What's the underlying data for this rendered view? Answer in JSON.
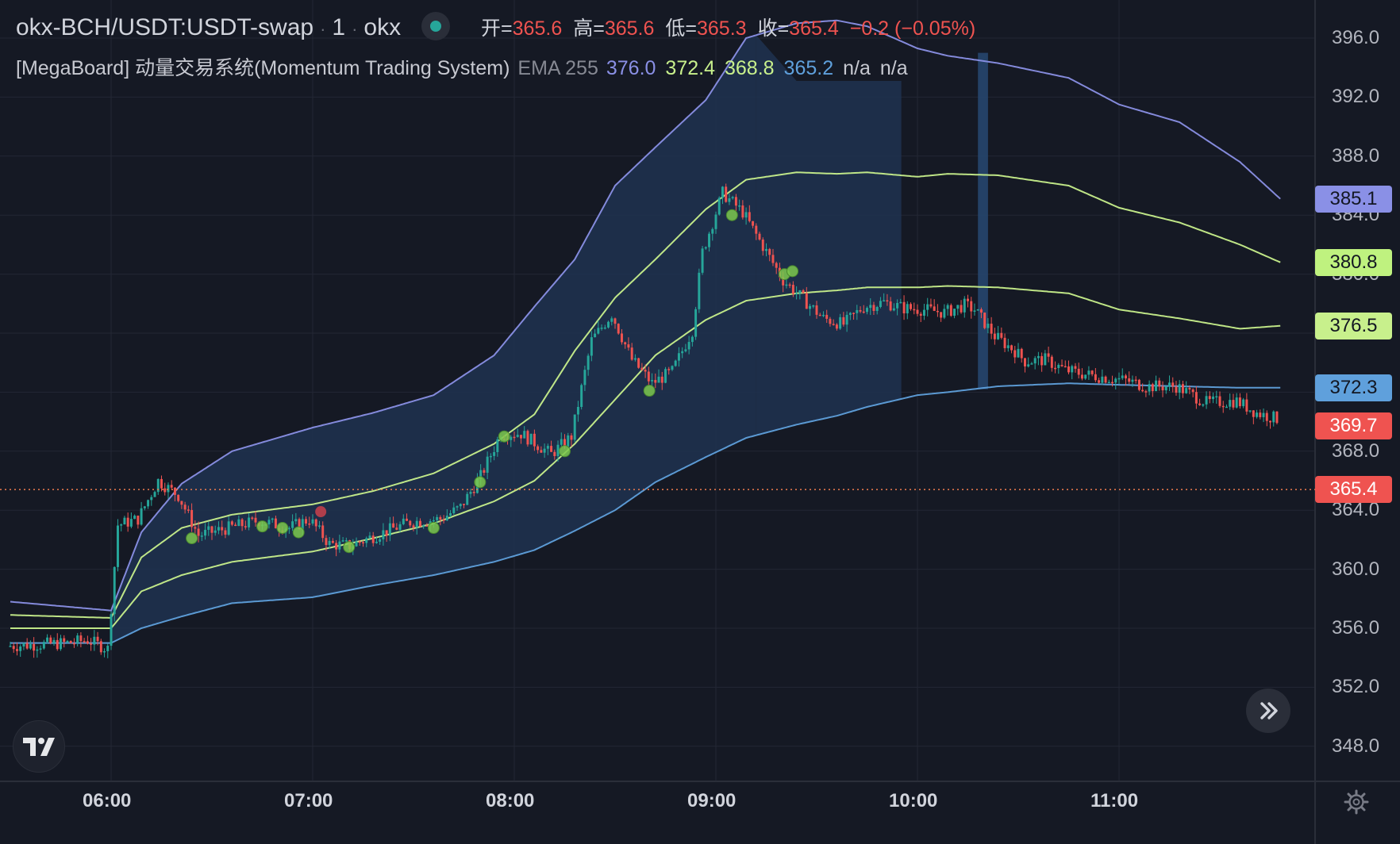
{
  "header": {
    "symbol": "okx-BCH/USDT:USDT-swap",
    "interval": "1",
    "exchange": "okx",
    "ohlc": [
      {
        "label": "开=",
        "value": "365.6"
      },
      {
        "label": "高=",
        "value": "365.6"
      },
      {
        "label": "低=",
        "value": "365.3"
      },
      {
        "label": "收=",
        "value": "365.4"
      }
    ],
    "change": "−0.2 (−0.05%)"
  },
  "indicator": {
    "title": "[MegaBoard] 动量交易系统(Momentum Trading System)",
    "ema_label": "EMA 255",
    "values": [
      {
        "text": "376.0",
        "color": "#8a90e6"
      },
      {
        "text": "372.4",
        "color": "#c8f08c"
      },
      {
        "text": "368.8",
        "color": "#c8f08c"
      },
      {
        "text": "365.2",
        "color": "#5fa0dc"
      },
      {
        "text": "n/a",
        "color": "#c7c9d1"
      },
      {
        "text": "n/a",
        "color": "#c7c9d1"
      }
    ]
  },
  "price_tags": [
    {
      "text": "385.1",
      "value": 385.1,
      "color": "#8a90e6"
    },
    {
      "text": "380.8",
      "value": 380.8,
      "color": "#bff27f"
    },
    {
      "text": "376.5",
      "value": 376.5,
      "color": "#c8f08c"
    },
    {
      "text": "372.3",
      "value": 372.3,
      "color": "#5fa0dc"
    },
    {
      "text": "369.7",
      "value": 369.7,
      "color": "#ef5350"
    },
    {
      "text": "365.4",
      "value": 365.4,
      "color": "#ef5350"
    }
  ],
  "colors": {
    "background": "#151924",
    "grid": "#232734",
    "up": "#26a69a",
    "down": "#ef5350",
    "upper_band": "#8a90e6",
    "mid_band": "#c8f08c",
    "lower_band": "#5fa0dc",
    "fill": "#1f3350",
    "current_price_line": "#ef7c4d"
  },
  "icons": {
    "logo": "tradingview-logo-icon",
    "scroll": "double-chevron-right-icon",
    "settings": "gear-icon"
  },
  "chart_data": {
    "type": "candlestick",
    "y_ticks": [
      "396.0",
      "392.0",
      "388.0",
      "384.0",
      "380.0",
      "376.0",
      "372.0",
      "368.0",
      "364.0",
      "360.0",
      "356.0",
      "352.0",
      "348.0"
    ],
    "x_ticks": [
      "06:00",
      "07:00",
      "08:00",
      "09:00",
      "10:00",
      "11:00"
    ],
    "ylim": [
      346.0,
      397.5
    ],
    "current_price": 365.4,
    "series": [
      {
        "name": "upper",
        "points": [
          [
            5.5,
            357.8
          ],
          [
            6.0,
            357.2
          ],
          [
            6.15,
            362.5
          ],
          [
            6.35,
            365.8
          ],
          [
            6.6,
            368.0
          ],
          [
            7.0,
            369.6
          ],
          [
            7.3,
            370.6
          ],
          [
            7.6,
            371.8
          ],
          [
            7.9,
            374.5
          ],
          [
            8.1,
            377.8
          ],
          [
            8.3,
            381.0
          ],
          [
            8.5,
            386.0
          ],
          [
            8.7,
            388.6
          ],
          [
            8.95,
            391.8
          ],
          [
            9.15,
            396.0
          ],
          [
            9.4,
            397.0
          ],
          [
            9.6,
            397.2
          ],
          [
            9.75,
            396.8
          ],
          [
            10.0,
            395.3
          ],
          [
            10.15,
            394.8
          ],
          [
            10.4,
            394.3
          ],
          [
            10.75,
            393.3
          ],
          [
            11.0,
            391.5
          ],
          [
            11.3,
            390.3
          ],
          [
            11.6,
            387.6
          ],
          [
            11.8,
            385.1
          ]
        ]
      },
      {
        "name": "mid_upper",
        "points": [
          [
            5.5,
            356.9
          ],
          [
            6.0,
            356.7
          ],
          [
            6.15,
            360.8
          ],
          [
            6.35,
            362.8
          ],
          [
            6.6,
            363.7
          ],
          [
            7.0,
            364.4
          ],
          [
            7.3,
            365.3
          ],
          [
            7.6,
            366.5
          ],
          [
            7.9,
            368.5
          ],
          [
            8.1,
            370.5
          ],
          [
            8.3,
            374.8
          ],
          [
            8.5,
            378.4
          ],
          [
            8.7,
            381.0
          ],
          [
            8.95,
            384.4
          ],
          [
            9.15,
            386.4
          ],
          [
            9.4,
            386.9
          ],
          [
            9.6,
            386.8
          ],
          [
            9.75,
            386.9
          ],
          [
            10.0,
            386.6
          ],
          [
            10.15,
            386.8
          ],
          [
            10.4,
            386.7
          ],
          [
            10.75,
            386.0
          ],
          [
            11.0,
            384.5
          ],
          [
            11.3,
            383.5
          ],
          [
            11.6,
            382.0
          ],
          [
            11.8,
            380.8
          ]
        ]
      },
      {
        "name": "mid_lower",
        "points": [
          [
            5.5,
            356.0
          ],
          [
            6.0,
            356.0
          ],
          [
            6.15,
            358.5
          ],
          [
            6.35,
            359.6
          ],
          [
            6.6,
            360.5
          ],
          [
            7.0,
            361.2
          ],
          [
            7.3,
            362.1
          ],
          [
            7.6,
            363.1
          ],
          [
            7.9,
            364.6
          ],
          [
            8.1,
            366.0
          ],
          [
            8.3,
            368.5
          ],
          [
            8.5,
            371.5
          ],
          [
            8.7,
            374.5
          ],
          [
            8.95,
            376.9
          ],
          [
            9.15,
            378.2
          ],
          [
            9.4,
            378.7
          ],
          [
            9.6,
            378.9
          ],
          [
            9.75,
            379.1
          ],
          [
            10.0,
            379.1
          ],
          [
            10.15,
            379.2
          ],
          [
            10.4,
            379.1
          ],
          [
            10.75,
            378.7
          ],
          [
            11.0,
            377.6
          ],
          [
            11.3,
            377.0
          ],
          [
            11.6,
            376.3
          ],
          [
            11.8,
            376.5
          ]
        ]
      },
      {
        "name": "lower",
        "points": [
          [
            5.5,
            355.0
          ],
          [
            6.0,
            355.0
          ],
          [
            6.15,
            356.0
          ],
          [
            6.35,
            356.8
          ],
          [
            6.6,
            357.7
          ],
          [
            7.0,
            358.1
          ],
          [
            7.3,
            358.9
          ],
          [
            7.6,
            359.6
          ],
          [
            7.9,
            360.5
          ],
          [
            8.1,
            361.3
          ],
          [
            8.3,
            362.6
          ],
          [
            8.5,
            364.0
          ],
          [
            8.7,
            365.9
          ],
          [
            8.95,
            367.6
          ],
          [
            9.15,
            368.9
          ],
          [
            9.4,
            369.8
          ],
          [
            9.6,
            370.4
          ],
          [
            9.75,
            371.0
          ],
          [
            10.0,
            371.8
          ],
          [
            10.15,
            372.0
          ],
          [
            10.4,
            372.4
          ],
          [
            10.75,
            372.6
          ],
          [
            11.0,
            372.5
          ],
          [
            11.3,
            372.4
          ],
          [
            11.6,
            372.3
          ],
          [
            11.8,
            372.3
          ]
        ]
      },
      {
        "name": "close",
        "points": [
          [
            5.5,
            354.8
          ],
          [
            5.8,
            355.0
          ],
          [
            5.9,
            355.2
          ],
          [
            6.0,
            354.6
          ],
          [
            6.05,
            363.0
          ],
          [
            6.15,
            363.4
          ],
          [
            6.25,
            366.0
          ],
          [
            6.35,
            365.0
          ],
          [
            6.45,
            362.3
          ],
          [
            6.6,
            362.8
          ],
          [
            6.75,
            363.3
          ],
          [
            6.9,
            362.8
          ],
          [
            7.0,
            363.4
          ],
          [
            7.1,
            361.7
          ],
          [
            7.2,
            361.6
          ],
          [
            7.35,
            362.4
          ],
          [
            7.5,
            363.2
          ],
          [
            7.65,
            363.4
          ],
          [
            7.75,
            364.2
          ],
          [
            7.85,
            366.3
          ],
          [
            7.95,
            369.2
          ],
          [
            8.05,
            369.2
          ],
          [
            8.2,
            367.8
          ],
          [
            8.3,
            369.0
          ],
          [
            8.4,
            375.5
          ],
          [
            8.5,
            377.3
          ],
          [
            8.6,
            374.2
          ],
          [
            8.7,
            372.6
          ],
          [
            8.8,
            373.4
          ],
          [
            8.9,
            376.2
          ],
          [
            8.95,
            381.5
          ],
          [
            9.05,
            385.5
          ],
          [
            9.15,
            384.2
          ],
          [
            9.25,
            381.9
          ],
          [
            9.35,
            379.6
          ],
          [
            9.45,
            378.3
          ],
          [
            9.55,
            377.0
          ],
          [
            9.65,
            376.6
          ],
          [
            9.75,
            377.8
          ],
          [
            9.85,
            378.1
          ],
          [
            9.95,
            377.7
          ],
          [
            10.05,
            377.6
          ],
          [
            10.15,
            377.4
          ],
          [
            10.25,
            377.9
          ],
          [
            10.3,
            377.6
          ],
          [
            10.4,
            375.8
          ],
          [
            10.5,
            374.8
          ],
          [
            10.55,
            374.1
          ],
          [
            10.65,
            374.2
          ],
          [
            10.75,
            373.5
          ],
          [
            10.85,
            373.2
          ],
          [
            10.95,
            373.0
          ],
          [
            11.05,
            372.8
          ],
          [
            11.15,
            372.4
          ],
          [
            11.3,
            372.4
          ],
          [
            11.45,
            371.3
          ],
          [
            11.6,
            371.4
          ],
          [
            11.7,
            370.6
          ],
          [
            11.8,
            370.2
          ]
        ]
      }
    ]
  }
}
